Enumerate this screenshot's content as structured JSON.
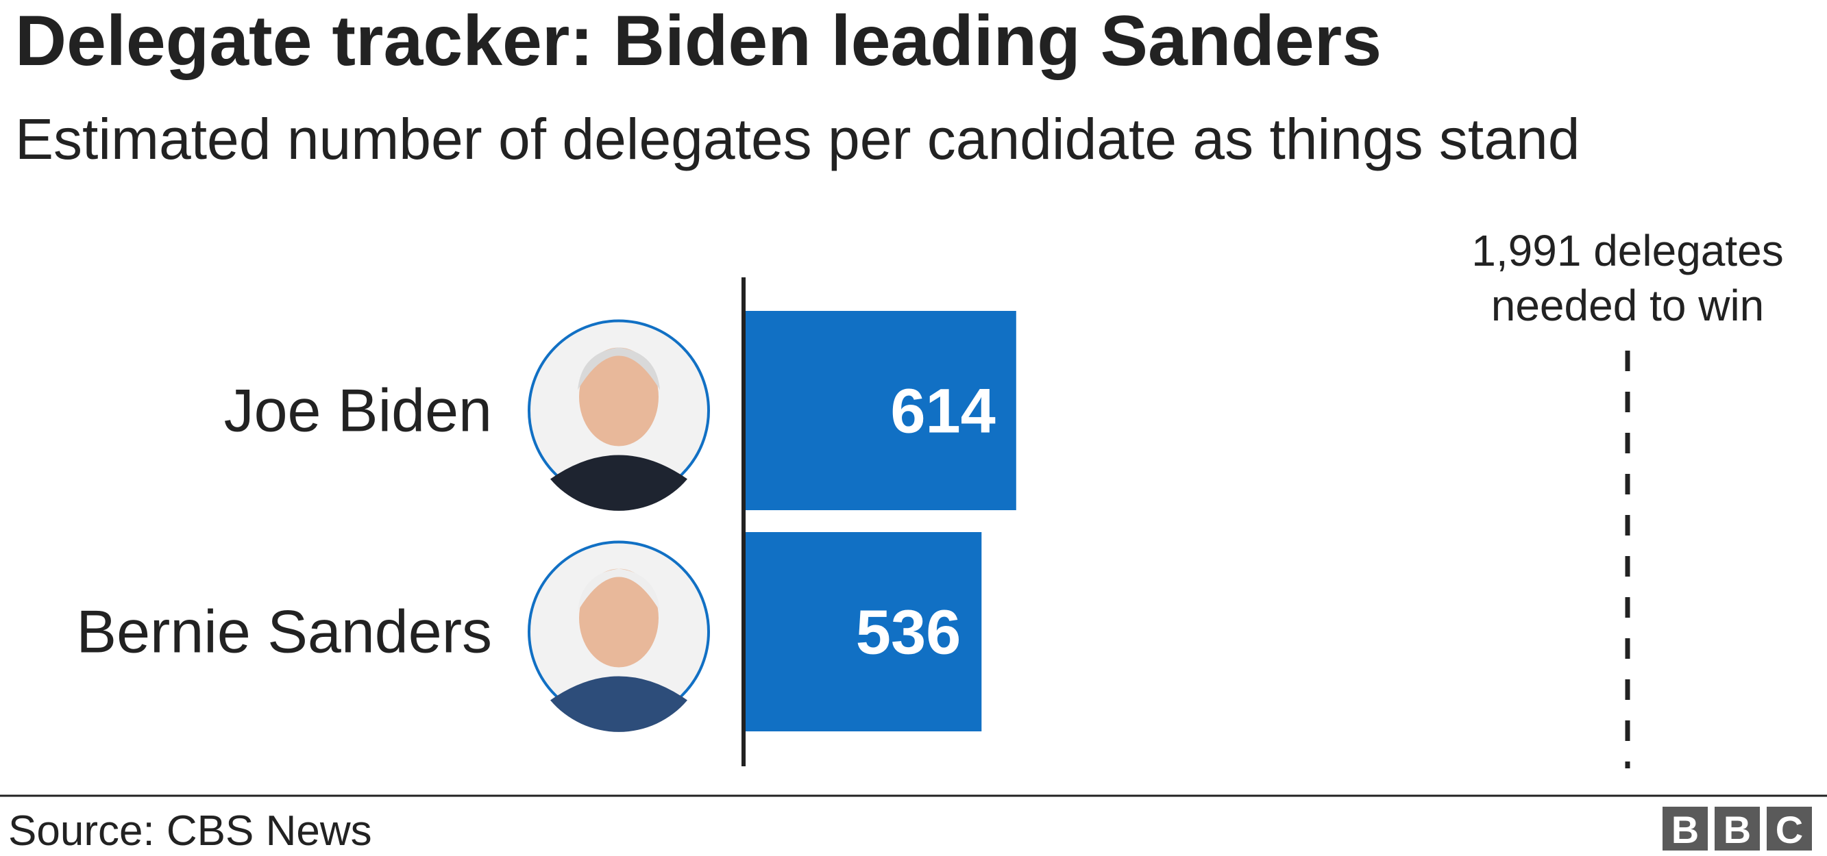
{
  "chart_data": {
    "type": "bar",
    "orientation": "horizontal",
    "title": "Delegate tracker: Biden leading Sanders",
    "subtitle": "Estimated number of delegates per candidate as things stand",
    "categories": [
      "Joe Biden",
      "Bernie Sanders"
    ],
    "values": [
      614,
      536
    ],
    "color": "#1170c4",
    "threshold": 1991,
    "annotation": [
      "1,991 delegates",
      "needed to win"
    ],
    "source": "Source: CBS News",
    "logo": [
      "B",
      "B",
      "C"
    ]
  }
}
